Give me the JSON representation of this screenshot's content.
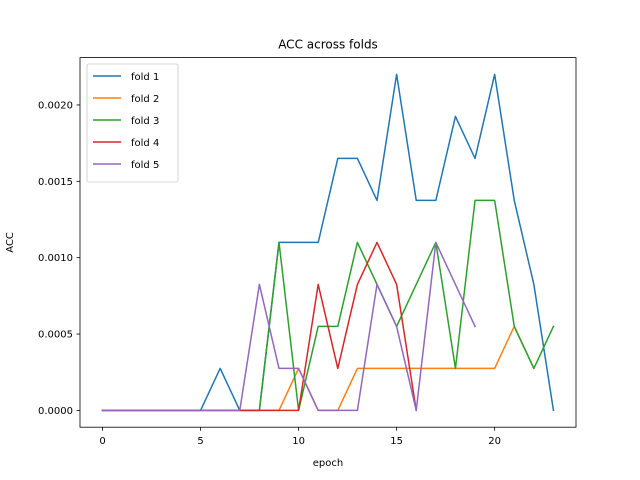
{
  "chart_data": {
    "type": "line",
    "title": "ACC across folds",
    "xlabel": "epoch",
    "ylabel": "ACC",
    "xlim": [
      -1.15,
      24.15
    ],
    "ylim": [
      -0.00011,
      0.00231
    ],
    "xticks": [
      0,
      5,
      10,
      15,
      20
    ],
    "yticks": [
      0.0,
      0.0005,
      0.001,
      0.0015,
      0.002
    ],
    "ytick_labels": [
      "0.0000",
      "0.0005",
      "0.0010",
      "0.0015",
      "0.0020"
    ],
    "grid": false,
    "legend_position": "upper-left",
    "series": [
      {
        "name": "fold 1",
        "color": "#1f77b4",
        "x": [
          0,
          1,
          2,
          3,
          4,
          5,
          6,
          7,
          8,
          9,
          10,
          11,
          12,
          13,
          14,
          15,
          16,
          17,
          18,
          19,
          20,
          21,
          22,
          23
        ],
        "values": [
          0,
          0,
          0,
          0,
          0,
          0,
          0.000275,
          0,
          0,
          0.0011,
          0.0011,
          0.0011,
          0.00165,
          0.00165,
          0.001375,
          0.0022,
          0.001375,
          0.001375,
          0.001925,
          0.00165,
          0.0022,
          0.001375,
          0.000825,
          0
        ]
      },
      {
        "name": "fold 2",
        "color": "#ff7f0e",
        "x": [
          0,
          1,
          2,
          3,
          4,
          5,
          6,
          7,
          8,
          9,
          10,
          11,
          12,
          13,
          14,
          15,
          16,
          17,
          18,
          19,
          20,
          21,
          22
        ],
        "values": [
          0,
          0,
          0,
          0,
          0,
          0,
          0,
          0,
          0,
          0,
          0.000275,
          0,
          0,
          0.000275,
          0.000275,
          0.000275,
          0.000275,
          0.000275,
          0.000275,
          0.000275,
          0.000275,
          0.00055,
          0.000275
        ]
      },
      {
        "name": "fold 3",
        "color": "#2ca02c",
        "x": [
          0,
          1,
          2,
          3,
          4,
          5,
          6,
          7,
          8,
          9,
          10,
          11,
          12,
          13,
          14,
          15,
          16,
          17,
          18,
          19,
          20,
          21,
          22,
          23
        ],
        "values": [
          0,
          0,
          0,
          0,
          0,
          0,
          0,
          0,
          0,
          0.0011,
          0,
          0.00055,
          0.00055,
          0.0011,
          0.000825,
          0.00055,
          0.000825,
          0.0011,
          0.000275,
          0.001375,
          0.001375,
          0.00055,
          0.000275,
          0.00055
        ]
      },
      {
        "name": "fold 4",
        "color": "#d62728",
        "x": [
          0,
          1,
          2,
          3,
          4,
          5,
          6,
          7,
          8,
          9,
          10,
          11,
          12,
          13,
          14,
          15,
          16
        ],
        "values": [
          0,
          0,
          0,
          0,
          0,
          0,
          0,
          0,
          0,
          0,
          0,
          0.000825,
          0.000275,
          0.000825,
          0.0011,
          0.000825,
          0
        ]
      },
      {
        "name": "fold 5",
        "color": "#9467bd",
        "x": [
          0,
          1,
          2,
          3,
          4,
          5,
          6,
          7,
          8,
          9,
          10,
          11,
          12,
          13,
          14,
          15,
          16,
          17,
          18,
          19
        ],
        "values": [
          0,
          0,
          0,
          0,
          0,
          0,
          0,
          0,
          0.000825,
          0.000275,
          0.000275,
          0,
          0,
          0,
          0.000825,
          0.00055,
          0,
          0.0011,
          0.000825,
          0.00055
        ]
      }
    ]
  }
}
